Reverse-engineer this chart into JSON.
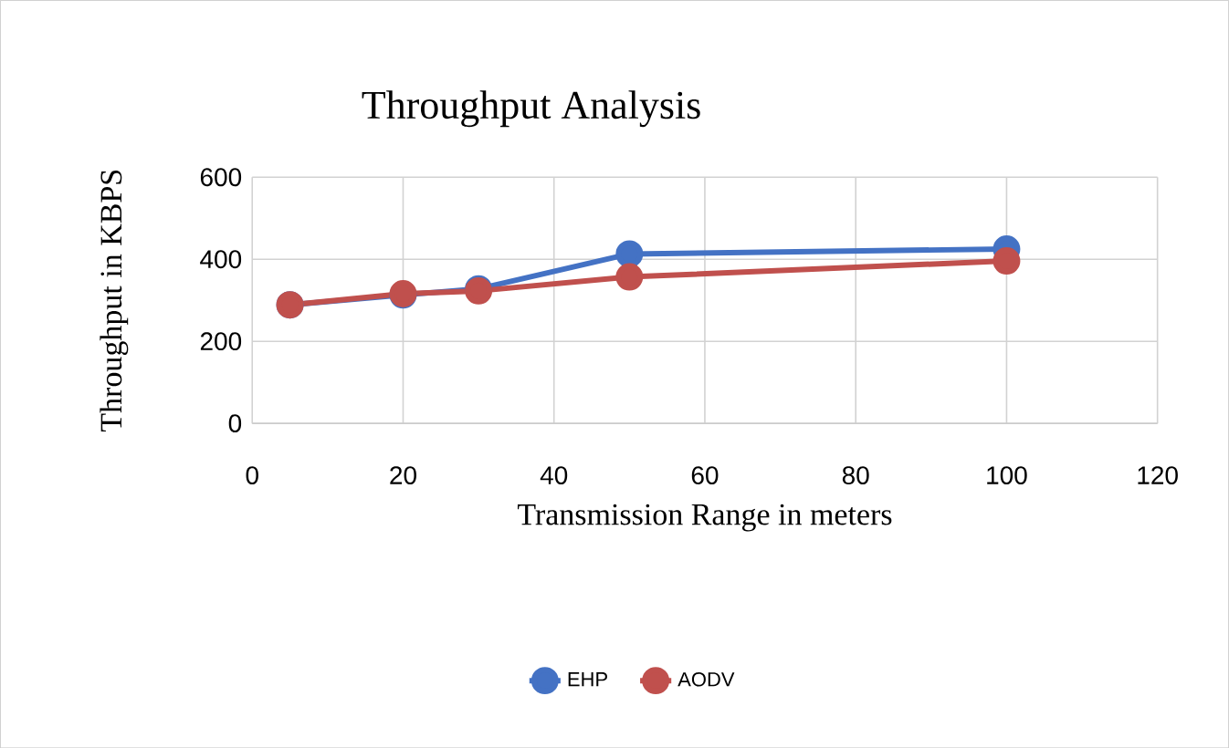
{
  "chart_data": {
    "type": "line",
    "title": "Throughput Analysis",
    "xlabel": "Transmission Range in meters",
    "ylabel": "Throughput in KBPS",
    "x": [
      5,
      20,
      30,
      50,
      100
    ],
    "series": [
      {
        "name": "EHP",
        "color": "#4472c4",
        "values": [
          289,
          313,
          328,
          413,
          425
        ]
      },
      {
        "name": "AODV",
        "color": "#c0504d",
        "values": [
          289,
          316,
          323,
          357,
          396
        ]
      }
    ],
    "xlim": [
      0,
      120
    ],
    "xticks": [
      0,
      20,
      40,
      60,
      80,
      100,
      120
    ],
    "ylim": [
      0,
      600
    ],
    "yticks": [
      0,
      200,
      400,
      600
    ],
    "grid": true,
    "legend": "bottom",
    "marker": "circle",
    "line_style": "solid"
  }
}
